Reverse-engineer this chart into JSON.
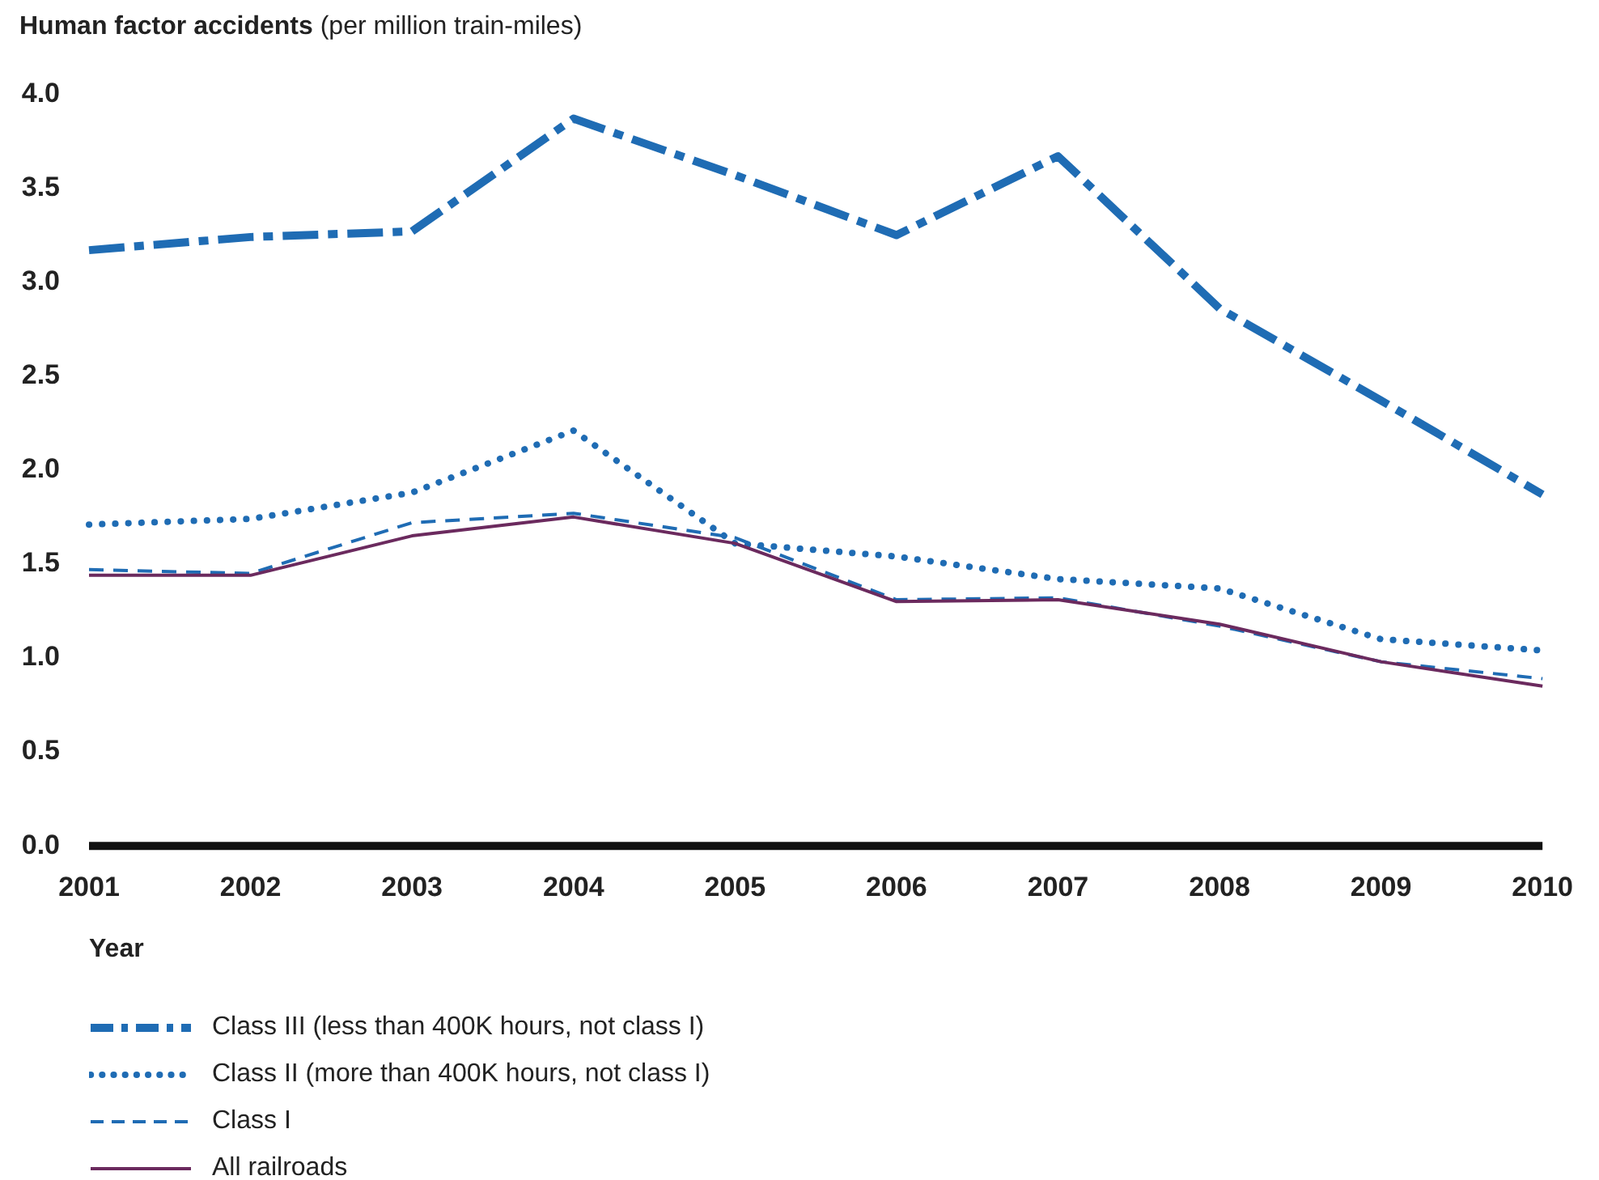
{
  "chart_data": {
    "type": "line",
    "title": "Human factor accidents",
    "subtitle": "(per million train-miles)",
    "xlabel": "Year",
    "categories": [
      "2001",
      "2002",
      "2003",
      "2004",
      "2005",
      "2006",
      "2007",
      "2008",
      "2009",
      "2010"
    ],
    "ylim": [
      0,
      4
    ],
    "yticks": [
      {
        "value": 0,
        "label": "0.0"
      },
      {
        "value": 0.5,
        "label": "0.5"
      },
      {
        "value": 1,
        "label": "1.0"
      },
      {
        "value": 1.5,
        "label": "1.5"
      },
      {
        "value": 2,
        "label": "2.0"
      },
      {
        "value": 2.5,
        "label": "2.5"
      },
      {
        "value": 3,
        "label": "3.0"
      },
      {
        "value": 3.5,
        "label": "3.5"
      },
      {
        "value": 4,
        "label": "4.0"
      }
    ],
    "grid": false,
    "legend": "bottom",
    "marker": "none",
    "series": [
      {
        "name": "Class III (less than 400K hours, not class I)",
        "color": "#1f6cb4",
        "line_style": "dashdot",
        "values": [
          3.17,
          3.24,
          3.27,
          3.87,
          3.57,
          3.25,
          3.67,
          2.86,
          2.37,
          1.87
        ]
      },
      {
        "name": "Class II (more than 400K hours, not class I)",
        "color": "#1f6cb4",
        "line_style": "dotted",
        "values": [
          1.71,
          1.74,
          1.88,
          2.21,
          1.61,
          1.54,
          1.42,
          1.37,
          1.1,
          1.04
        ]
      },
      {
        "name": "Class I",
        "color": "#1f6cb4",
        "line_style": "dashed",
        "values": [
          1.47,
          1.45,
          1.72,
          1.77,
          1.64,
          1.31,
          1.32,
          1.17,
          0.98,
          0.89
        ]
      },
      {
        "name": "All railroads",
        "color": "#6b2a5e",
        "line_style": "solid",
        "values": [
          1.44,
          1.44,
          1.65,
          1.75,
          1.61,
          1.3,
          1.31,
          1.18,
          0.98,
          0.85
        ]
      }
    ]
  }
}
